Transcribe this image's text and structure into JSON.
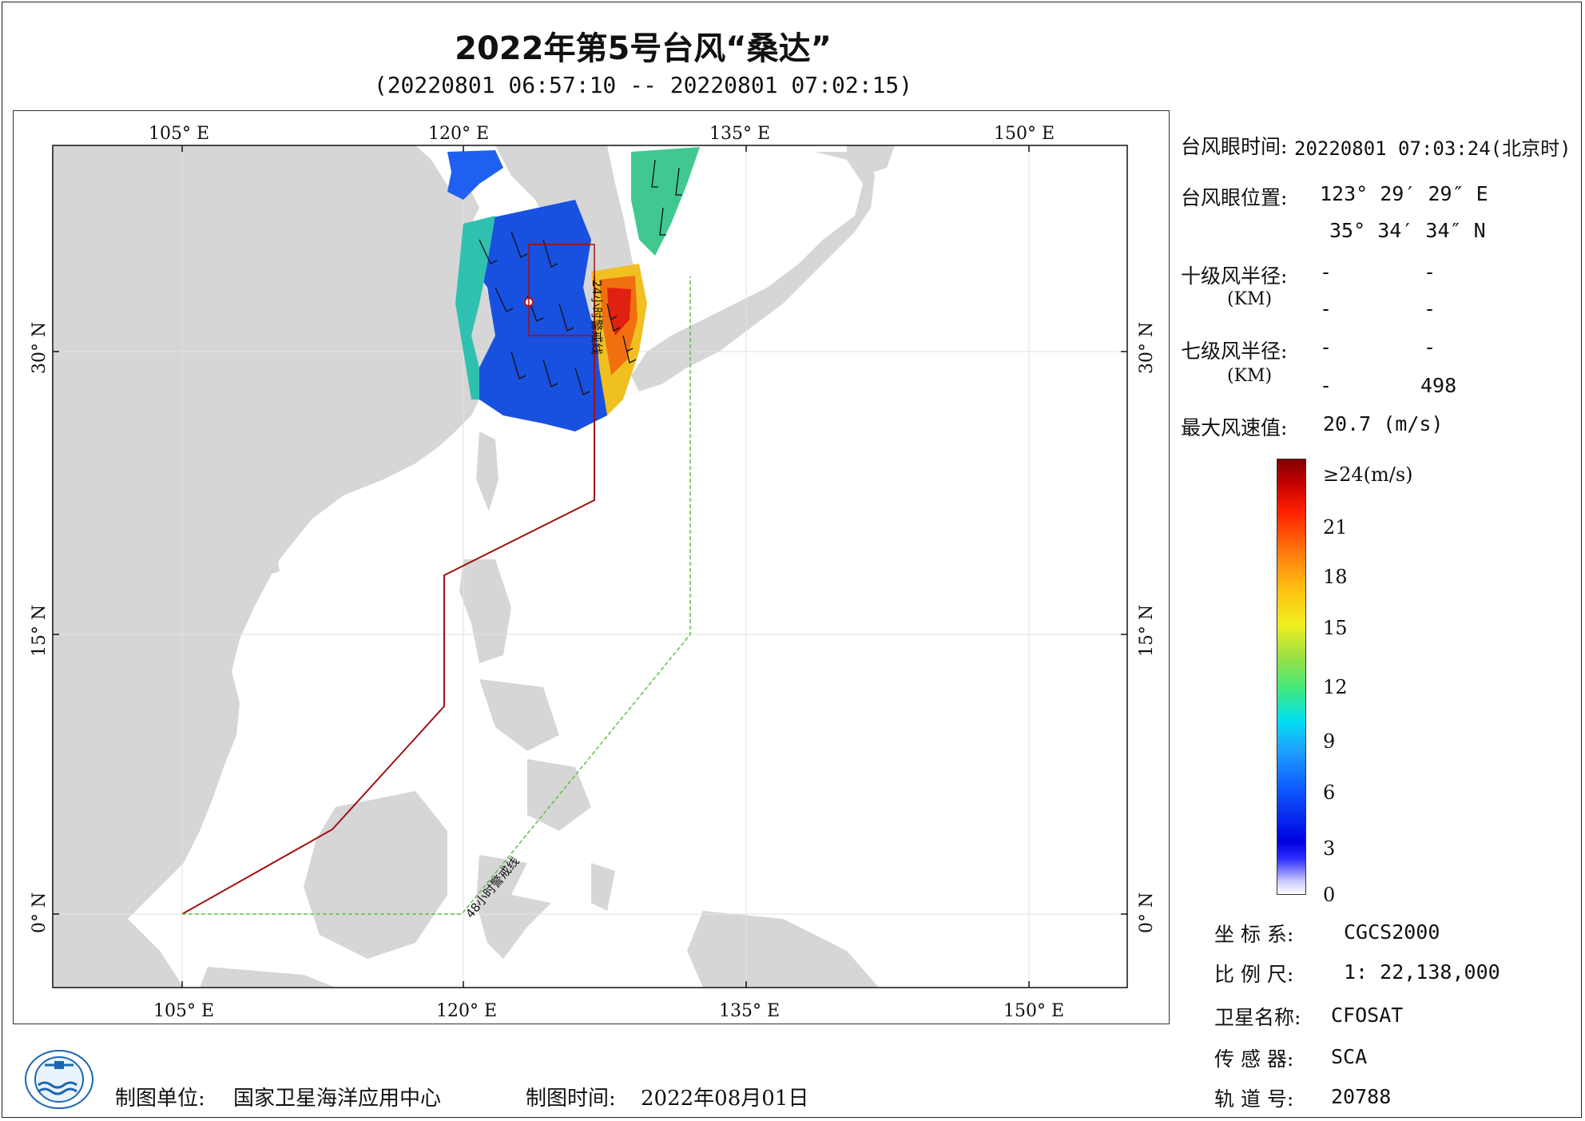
{
  "header": {
    "title": "2022年第5号台风“桑达”",
    "subtitle": "(20220801 06:57:10 -- 20220801 07:02:15)"
  },
  "map": {
    "lon_ticks_top": [
      "105° E",
      "120° E",
      "135° E",
      "150° E"
    ],
    "lon_ticks_bottom": [
      "105° E",
      "120° E",
      "135° E",
      "150° E"
    ],
    "lat_ticks_left": [
      "30° N",
      "15° N",
      "0° N"
    ],
    "lat_ticks_right": [
      "30° N",
      "15° N",
      "0° N"
    ],
    "line_24h_label": "24小时警戒线",
    "line_48h_label": "48小时警戒线",
    "colors": {
      "land": "#d6d6d6",
      "sea": "#ffffff",
      "line_24h": "#a01010",
      "line_48h": "#5cc040",
      "grid": "#e0e0e0"
    }
  },
  "info": {
    "eye_time_label": "台风眼时间:",
    "eye_time_value": "20220801 07:03:24(北京时)",
    "eye_pos_label": "台风眼位置:",
    "eye_lon": "123° 29′ 29″ E",
    "eye_lat": "35° 34′ 34″ N",
    "r10_label": "十级风半径:",
    "r10_unit": "(KM)",
    "r10_a": "-",
    "r10_b": "-",
    "r10_c": "-",
    "r10_d": "-",
    "r7_label": "七级风半径:",
    "r7_unit": "(KM)",
    "r7_a": "-",
    "r7_b": "-",
    "r7_c": "-",
    "r7_d": "498",
    "max_wind_label": "最大风速值:",
    "max_wind_value": "20.7 (m/s)"
  },
  "colorbar": {
    "top_label": "≥24(m/s)",
    "ticks": [
      "21",
      "18",
      "15",
      "12",
      "9",
      "6",
      "3",
      "0"
    ]
  },
  "meta": {
    "crs_label": "坐 标 系:",
    "crs_value": "CGCS2000",
    "scale_label": "比 例 尺:",
    "scale_value": "1: 22,138,000",
    "sat_label": "卫星名称:",
    "sat_value": "CFOSAT",
    "sensor_label": "传 感 器:",
    "sensor_value": "SCA",
    "orbit_label": "轨 道 号:",
    "orbit_value": "20788"
  },
  "footer": {
    "unit_label": "制图单位:",
    "unit_value": "国家卫星海洋应用中心",
    "time_label": "制图时间:",
    "time_value": "2022年08月01日"
  }
}
